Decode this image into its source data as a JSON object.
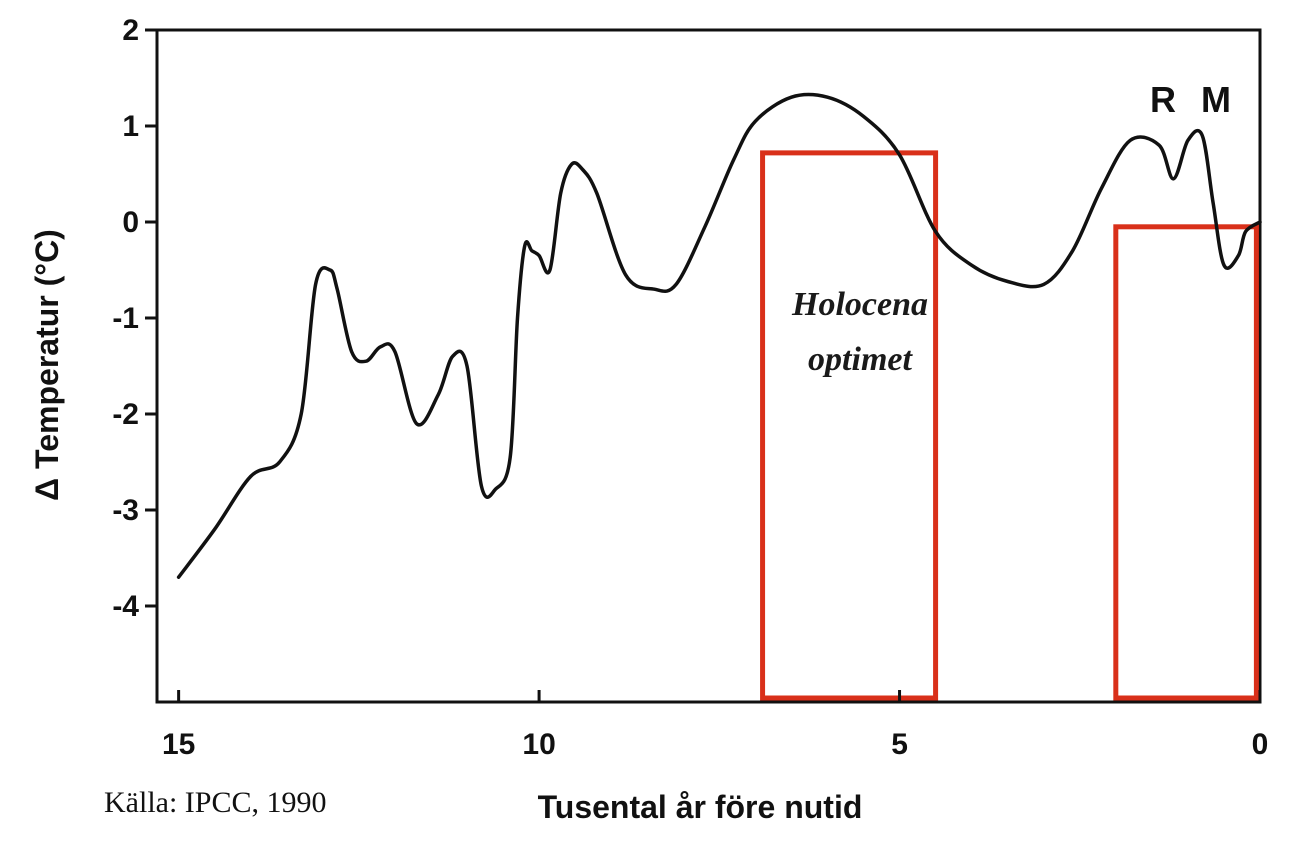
{
  "chart_data": {
    "type": "line",
    "xlabel": "Tusental år före nutid",
    "ylabel": "Δ Temperatur  (°C)",
    "xlim": [
      15.3,
      0
    ],
    "ylim": [
      -5,
      2
    ],
    "x_ticks": [
      15,
      10,
      5,
      0
    ],
    "x_tick_labels": [
      "15",
      "10",
      "5",
      "0"
    ],
    "y_ticks": [
      2,
      1,
      0,
      -1,
      -2,
      -3,
      -4
    ],
    "y_tick_labels": [
      "2",
      "1",
      "0",
      "-1",
      "-2",
      "-3",
      "-4"
    ],
    "grid": false,
    "line_color": "#111111",
    "highlight_color": "#d9301a",
    "series": [
      {
        "x": [
          15.0,
          14.5,
          14.0,
          13.6,
          13.3,
          13.1,
          12.9,
          12.8,
          12.6,
          12.4,
          12.2,
          12.0,
          11.7,
          11.4,
          11.2,
          11.0,
          10.8,
          10.6,
          10.4,
          10.3,
          10.2,
          10.1,
          10.0,
          9.85,
          9.7,
          9.55,
          9.4,
          9.2,
          8.8,
          8.4,
          8.1,
          7.7,
          7.3,
          7.0,
          6.5,
          6.0,
          5.5,
          5.0,
          4.5,
          4.0,
          3.5,
          3.0,
          2.6,
          2.2,
          1.8,
          1.4,
          1.2,
          1.0,
          0.8,
          0.65,
          0.5,
          0.3,
          0.2,
          0.0
        ],
        "y": [
          -3.7,
          -3.2,
          -2.65,
          -2.5,
          -2.0,
          -0.65,
          -0.5,
          -0.7,
          -1.35,
          -1.45,
          -1.3,
          -1.35,
          -2.1,
          -1.8,
          -1.4,
          -1.5,
          -2.75,
          -2.78,
          -2.45,
          -1.0,
          -0.25,
          -0.3,
          -0.35,
          -0.5,
          0.3,
          0.6,
          0.55,
          0.3,
          -0.55,
          -0.7,
          -0.65,
          -0.05,
          0.65,
          1.05,
          1.3,
          1.3,
          1.1,
          0.7,
          -0.1,
          -0.45,
          -0.62,
          -0.65,
          -0.3,
          0.35,
          0.85,
          0.8,
          0.45,
          0.85,
          0.9,
          0.2,
          -0.45,
          -0.35,
          -0.1,
          0.0
        ]
      }
    ],
    "highlights": [
      {
        "x": [
          6.9,
          4.5
        ],
        "y": [
          -5,
          0.72
        ]
      },
      {
        "x": [
          2.0,
          0.05
        ],
        "y": [
          -5,
          -0.05
        ]
      }
    ],
    "annotations": {
      "holocene_line1": "Holocena",
      "holocene_line2": "optimet",
      "label_r": "R",
      "label_m": "M",
      "source": "Källa: IPCC, 1990"
    }
  }
}
